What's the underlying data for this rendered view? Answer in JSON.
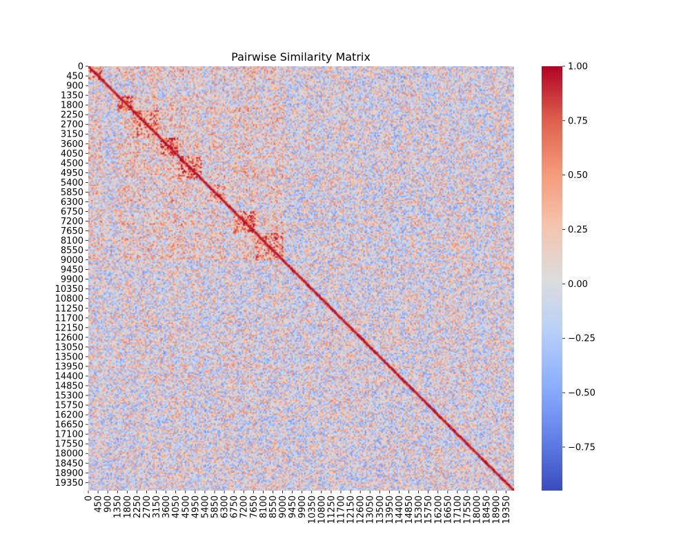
{
  "chart_data": {
    "type": "heatmap",
    "title": "Pairwise Similarity Matrix",
    "xlabel": "",
    "ylabel": "",
    "n": 19725,
    "tick_step": 450,
    "x_ticks": [
      "0",
      "450",
      "900",
      "1350",
      "1800",
      "2250",
      "2700",
      "3150",
      "3600",
      "4050",
      "4500",
      "4950",
      "5400",
      "5850",
      "6300",
      "6750",
      "7200",
      "7650",
      "8100",
      "8550",
      "9000",
      "9450",
      "9900",
      "10350",
      "10800",
      "11250",
      "11700",
      "12150",
      "12600",
      "13050",
      "13500",
      "13950",
      "14400",
      "14850",
      "15300",
      "15750",
      "16200",
      "16650",
      "17100",
      "17550",
      "18000",
      "18450",
      "18900",
      "19350"
    ],
    "y_ticks": [
      "0",
      "450",
      "900",
      "1350",
      "1800",
      "2250",
      "2700",
      "3150",
      "3600",
      "4050",
      "4500",
      "4950",
      "5400",
      "5850",
      "6300",
      "6750",
      "7200",
      "7650",
      "8100",
      "8550",
      "9000",
      "9450",
      "9900",
      "10350",
      "10800",
      "11250",
      "11700",
      "12150",
      "12600",
      "13050",
      "13500",
      "13950",
      "14400",
      "14850",
      "15300",
      "15750",
      "16200",
      "16650",
      "17100",
      "17550",
      "18000",
      "18450",
      "18900",
      "19350"
    ],
    "colormap": "coolwarm",
    "vmin": -0.95,
    "vmax": 1.0,
    "diagonal_value": 1.0,
    "colorbar": {
      "ticks": [
        "1.00",
        "0.75",
        "0.50",
        "0.25",
        "0.00",
        "−0.25",
        "−0.50",
        "−0.75"
      ],
      "values": [
        1.0,
        0.75,
        0.5,
        0.25,
        0.0,
        -0.25,
        -0.5,
        -0.75
      ],
      "placement": "right"
    },
    "blocks": [
      {
        "start": 0,
        "end": 600,
        "mean": 0.45
      },
      {
        "start": 1300,
        "end": 2000,
        "mean": 0.6
      },
      {
        "start": 2000,
        "end": 3300,
        "mean": 0.4
      },
      {
        "start": 3300,
        "end": 4100,
        "mean": 0.55
      },
      {
        "start": 4100,
        "end": 5200,
        "mean": 0.45
      },
      {
        "start": 5500,
        "end": 6300,
        "mean": 0.35
      },
      {
        "start": 6700,
        "end": 7700,
        "mean": 0.5
      },
      {
        "start": 7700,
        "end": 9000,
        "mean": 0.4
      }
    ],
    "grid": false
  }
}
